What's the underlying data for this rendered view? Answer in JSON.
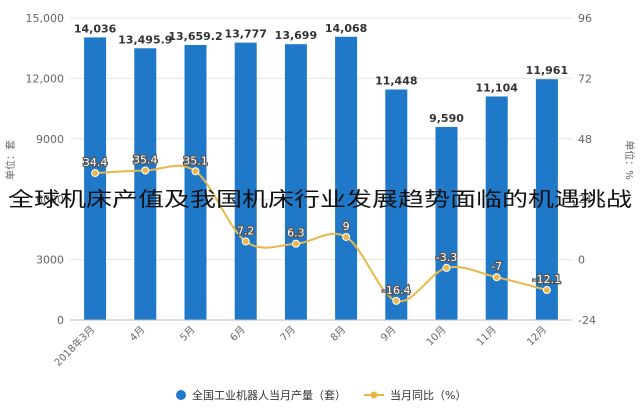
{
  "overlay_title": "全球机床产值及我国机床行业发展趋势面临的机遇挑战",
  "colors": {
    "bar": "#1f78c8",
    "line": "#e8b84a",
    "grid": "#e6e6e6",
    "axis_text": "#666666"
  },
  "chart_data": {
    "type": "bar",
    "categories": [
      "2018年3月",
      "4月",
      "5月",
      "6月",
      "7月",
      "8月",
      "9月",
      "10月",
      "11月",
      "12月"
    ],
    "series": [
      {
        "name": "全国工业机器人当月产量（套）",
        "type": "bar",
        "axis": "left",
        "values": [
          14036,
          13495.9,
          13659.2,
          13777,
          13699,
          14068,
          11448,
          9590,
          11104,
          11961
        ],
        "labels": [
          "14,036",
          "13,495.9",
          "13,659.2",
          "13,777",
          "13,699",
          "14,068",
          "11,448",
          "9,590",
          "11,104",
          "11,961"
        ]
      },
      {
        "name": "当月同比（%）",
        "type": "line",
        "axis": "right",
        "values": [
          34.4,
          35.4,
          35.1,
          7.2,
          6.3,
          9,
          -16.4,
          -3.3,
          -7,
          -12.1
        ],
        "labels": [
          "34.4",
          "35.4",
          "35.1",
          "7.2",
          "6.3",
          "9",
          "-16.4",
          "-3.3",
          "-7",
          "-12.1"
        ]
      }
    ],
    "ylabel_left": "单位：套",
    "ylabel_right": "单位：%",
    "ylim_left": [
      0,
      15000
    ],
    "ylim_right": [
      -24,
      96
    ],
    "yticks_left": [
      "0",
      "3000",
      "6000",
      "9000",
      "12,000",
      "15,000"
    ],
    "yticks_right": [
      "-24",
      "0",
      "24",
      "48",
      "72",
      "96"
    ],
    "grid": true,
    "legend_position": "bottom"
  }
}
